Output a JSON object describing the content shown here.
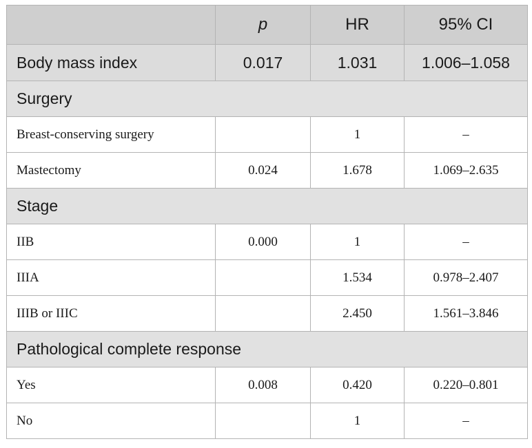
{
  "header": {
    "col1": "",
    "col2": "p",
    "col3": "HR",
    "col4": "95% CI"
  },
  "bmi": {
    "label": "Body mass index",
    "p": "0.017",
    "hr": "1.031",
    "ci": "1.006–1.058"
  },
  "sections": [
    {
      "title": "Surgery",
      "rows": [
        {
          "label": "Breast-conserving surgery",
          "p": "",
          "hr": "1",
          "ci": "–"
        },
        {
          "label": "Mastectomy",
          "p": "0.024",
          "hr": "1.678",
          "ci": "1.069–2.635"
        }
      ]
    },
    {
      "title": "Stage",
      "rows": [
        {
          "label": "IIB",
          "p": "0.000",
          "hr": "1",
          "ci": "–"
        },
        {
          "label": "IIIA",
          "p": "",
          "hr": "1.534",
          "ci": "0.978–2.407"
        },
        {
          "label": "IIIB or IIIC",
          "p": "",
          "hr": "2.450",
          "ci": "1.561–3.846"
        }
      ]
    },
    {
      "title": "Pathological complete response",
      "rows": [
        {
          "label": "Yes",
          "p": "0.008",
          "hr": "0.420",
          "ci": "0.220–0.801"
        },
        {
          "label": "No",
          "p": "",
          "hr": "1",
          "ci": "–"
        }
      ]
    }
  ]
}
